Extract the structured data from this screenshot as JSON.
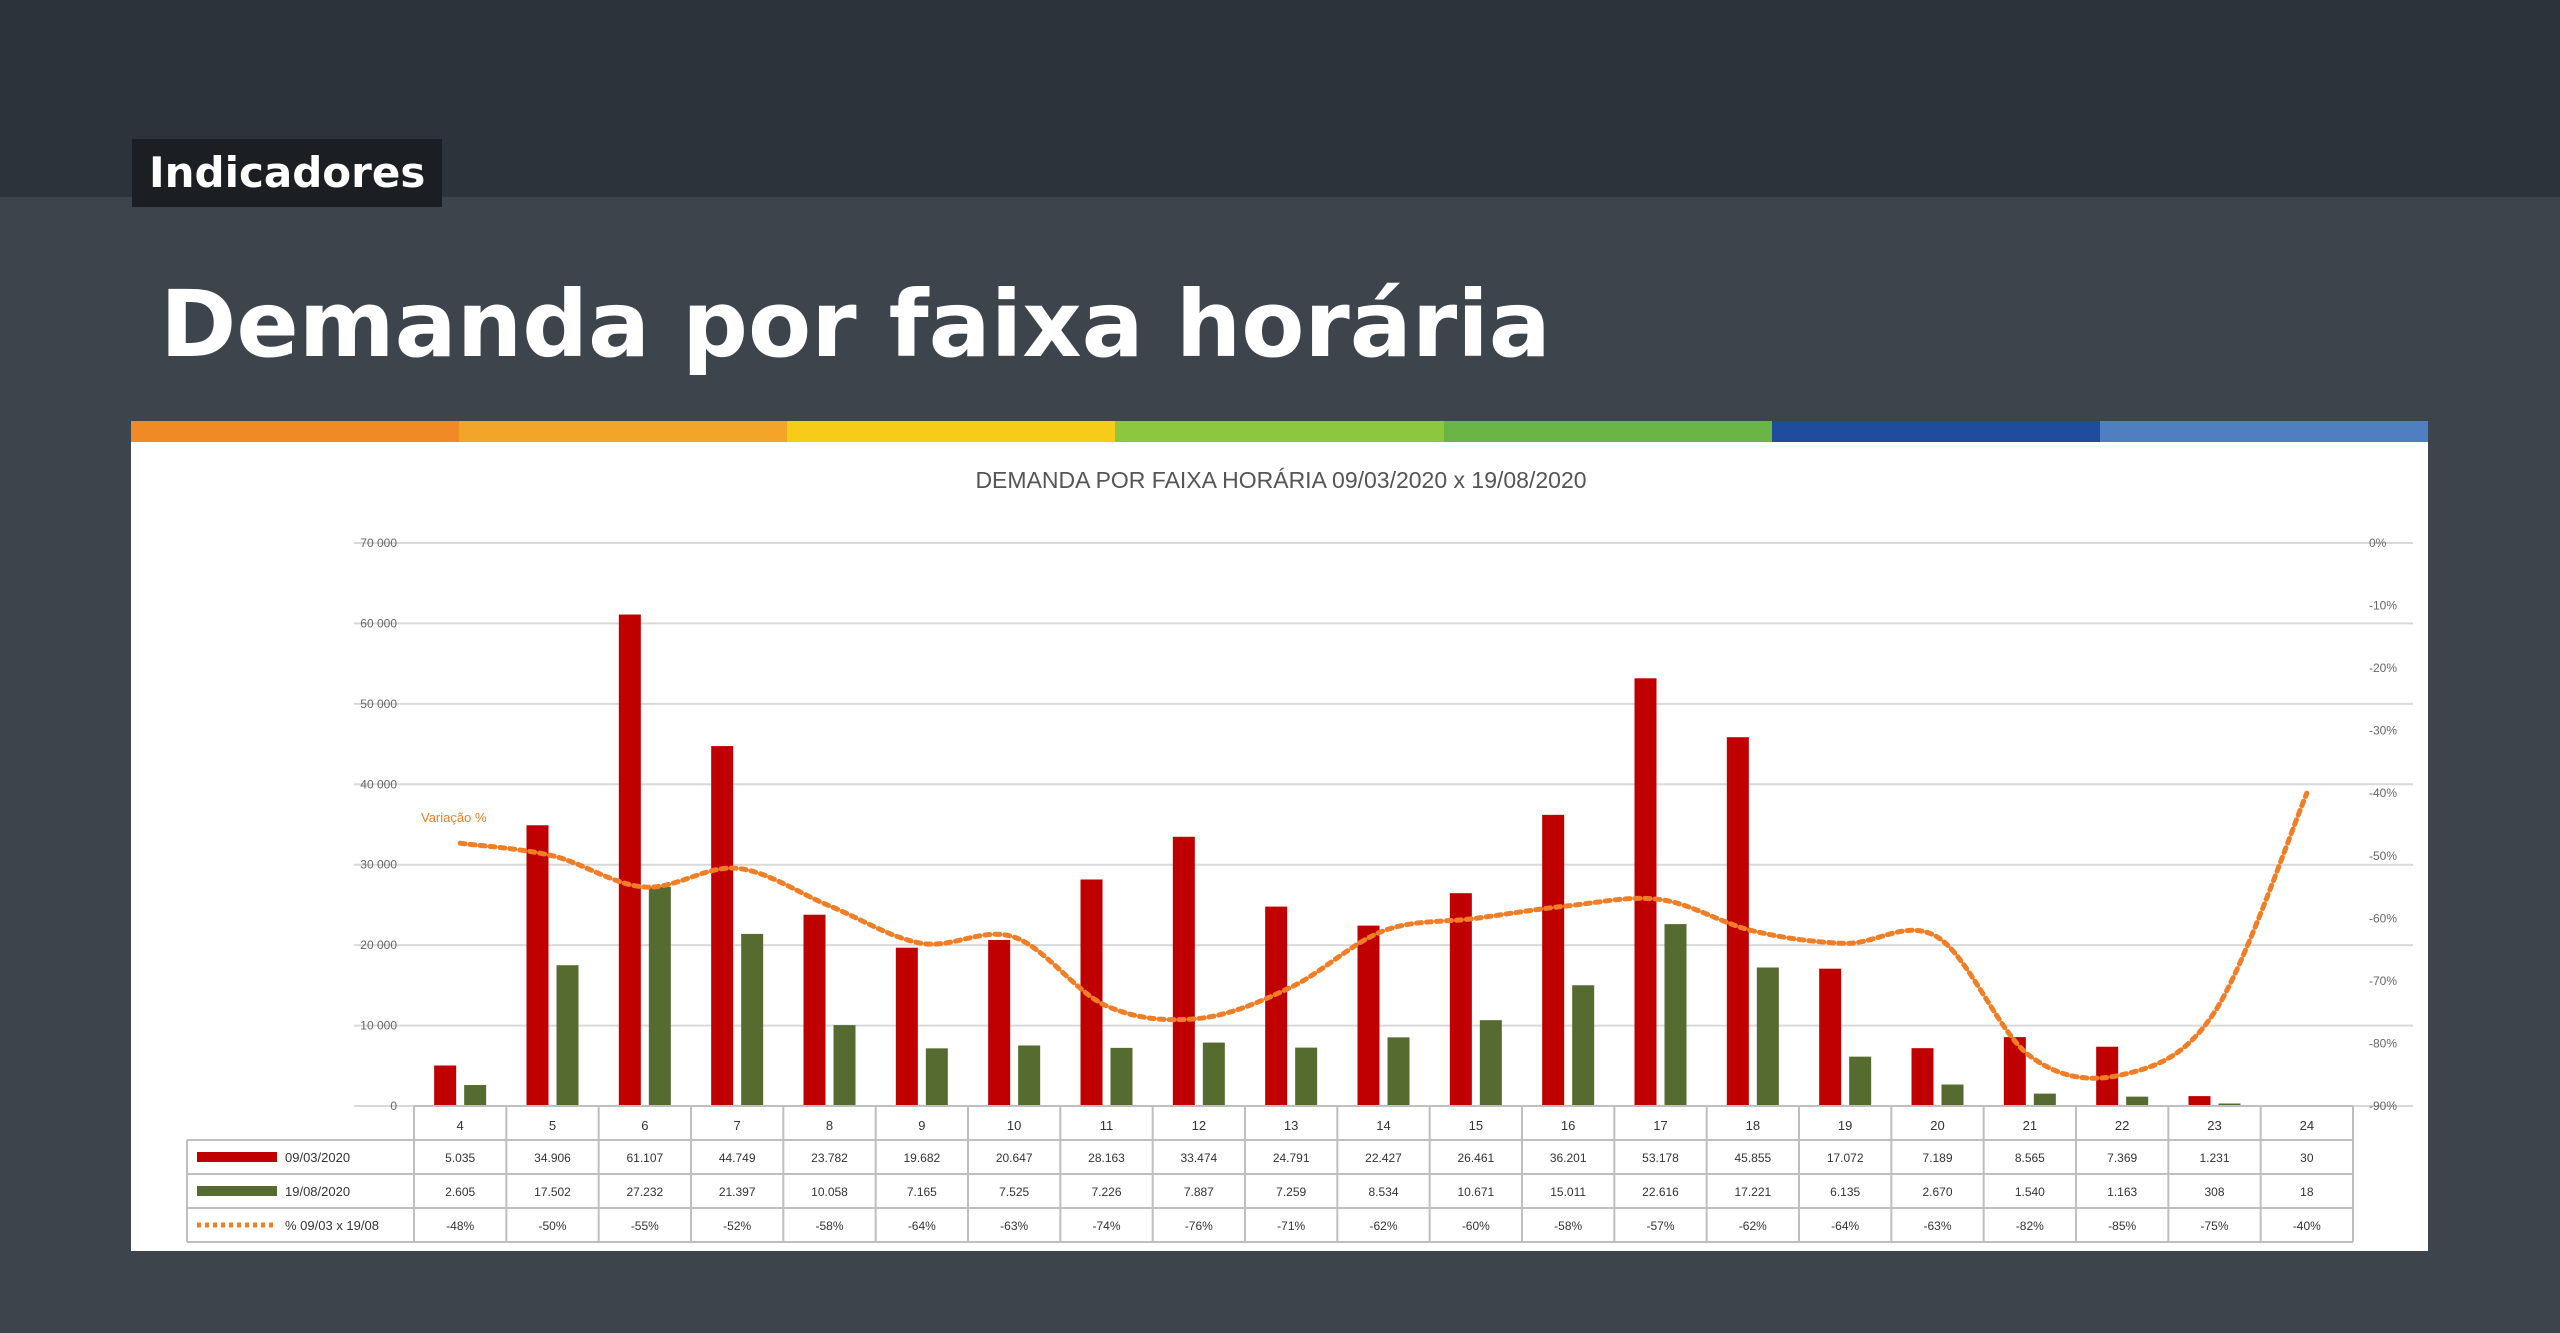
{
  "header": {
    "section_tag": "Indicadores",
    "title": "Demanda por faixa horária",
    "stripe_colors": [
      "#ef8a25",
      "#f3a52a",
      "#f6cc18",
      "#8dc63f",
      "#6ab545",
      "#1f4c9c",
      "#4f7ec1"
    ]
  },
  "chart_data": {
    "type": "bar",
    "title": "DEMANDA POR FAIXA HORÁRIA 09/03/2020 x 19/08/2020",
    "categories": [
      "4",
      "5",
      "6",
      "7",
      "8",
      "9",
      "10",
      "11",
      "12",
      "13",
      "14",
      "15",
      "16",
      "17",
      "18",
      "19",
      "20",
      "21",
      "22",
      "23",
      "24"
    ],
    "y_ticks": [
      "70 000",
      "60 000",
      "50 000",
      "40 000",
      "30 000",
      "20 000",
      "10 000",
      "0"
    ],
    "ylim": [
      0,
      70000
    ],
    "y2_ticks": [
      "0%",
      "-10%",
      "-20%",
      "-30%",
      "-40%",
      "-50%",
      "-60%",
      "-70%",
      "-80%",
      "-90%"
    ],
    "y2lim": [
      -90,
      0
    ],
    "series": [
      {
        "name": "09/03/2020",
        "color": "#c00000",
        "type": "bar",
        "values": [
          5035,
          34906,
          61107,
          44749,
          23782,
          19682,
          20647,
          28163,
          33474,
          24791,
          22427,
          26461,
          36201,
          53178,
          45855,
          17072,
          7189,
          8565,
          7369,
          1231,
          30
        ],
        "labels": [
          "5.035",
          "34.906",
          "61.107",
          "44.749",
          "23.782",
          "19.682",
          "20.647",
          "28.163",
          "33.474",
          "24.791",
          "22.427",
          "26.461",
          "36.201",
          "53.178",
          "45.855",
          "17.072",
          "7.189",
          "8.565",
          "7.369",
          "1.231",
          "30"
        ]
      },
      {
        "name": "19/08/2020",
        "color": "#556b2f",
        "type": "bar",
        "values": [
          2605,
          17502,
          27232,
          21397,
          10058,
          7165,
          7525,
          7226,
          7887,
          7259,
          8534,
          10671,
          15011,
          22616,
          17221,
          6135,
          2670,
          1540,
          1163,
          308,
          18
        ],
        "labels": [
          "2.605",
          "17.502",
          "27.232",
          "21.397",
          "10.058",
          "7.165",
          "7.525",
          "7.226",
          "7.887",
          "7.259",
          "8.534",
          "10.671",
          "15.011",
          "22.616",
          "17.221",
          "6.135",
          "2.670",
          "1.540",
          "1.163",
          "308",
          "18"
        ]
      },
      {
        "name": "% 09/03 x 19/08",
        "color": "#f07e26",
        "type": "line",
        "axis": "right",
        "values": [
          -48,
          -50,
          -55,
          -52,
          -58,
          -64,
          -63,
          -74,
          -76,
          -71,
          -62,
          -60,
          -58,
          -57,
          -62,
          -64,
          -63,
          -82,
          -85,
          -75,
          -40
        ],
        "labels": [
          "-48%",
          "-50%",
          "-55%",
          "-52%",
          "-58%",
          "-64%",
          "-63%",
          "-74%",
          "-76%",
          "-71%",
          "-62%",
          "-60%",
          "-58%",
          "-57%",
          "-62%",
          "-64%",
          "-63%",
          "-82%",
          "-85%",
          "-75%",
          "-40%"
        ]
      }
    ],
    "annotation": "Variação %",
    "grid": true,
    "legend": "data-table-below"
  }
}
